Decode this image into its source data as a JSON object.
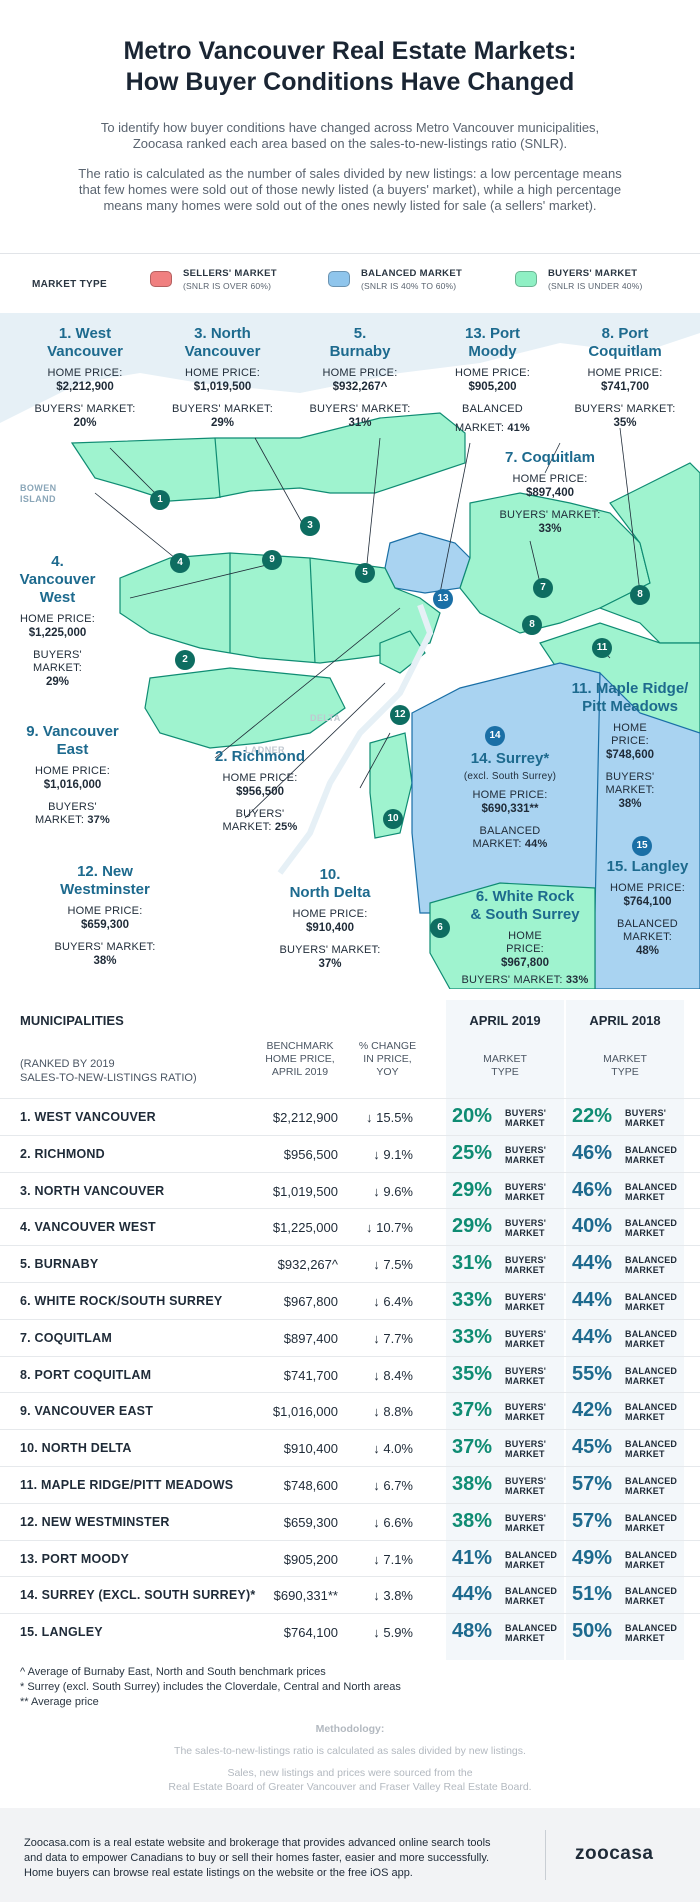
{
  "header": {
    "title_line1": "Metro Vancouver Real Estate Markets:",
    "title_line2": "How Buyer Conditions Have Changed",
    "intro1_line1": "To identify how buyer conditions have changed across Metro Vancouver municipalities,",
    "intro1_line2": "Zoocasa ranked each area based on the sales-to-new-listings ratio (SNLR).",
    "intro2_line1": "The ratio is calculated as the number of sales divided by new listings: a low percentage means",
    "intro2_line2": "that few homes were sold out of those newly listed (a buyers' market), while a high percentage",
    "intro2_line3": "means many homes were sold out of the ones newly listed for sale (a sellers' market)."
  },
  "legend": {
    "title": "MARKET TYPE",
    "sellers": {
      "name": "SELLERS' MARKET",
      "sub": "(SNLR IS OVER 60%)",
      "color": "#f08080"
    },
    "balanced": {
      "name": "BALANCED MARKET",
      "sub": "(SNLR IS 40% TO 60%)",
      "color": "#8fc5ec"
    },
    "buyers": {
      "name": "BUYERS' MARKET",
      "sub": "(SNLR IS UNDER 40%)",
      "color": "#8ff0c4"
    }
  },
  "map": {
    "place_bowen": "BOWEN",
    "place_island": "ISLAND",
    "place_delta": "DELTA",
    "place_ladner": "LADNER",
    "labels": {
      "westvan": {
        "name1": "1. West",
        "name2": "Vancouver",
        "price_key": "HOME PRICE:",
        "price": "$2,212,900",
        "market_key": "BUYERS' MARKET:",
        "market": "20%"
      },
      "northvan": {
        "name1": "3. North",
        "name2": "Vancouver",
        "price_key": "HOME PRICE:",
        "price": "$1,019,500",
        "market_key": "BUYERS' MARKET:",
        "market": "29%"
      },
      "burnaby": {
        "name1": "5.",
        "name2": "Burnaby",
        "price_key": "HOME PRICE:",
        "price": "$932,267^",
        "market_key": "BUYERS' MARKET:",
        "market": "31%"
      },
      "portmoody": {
        "name1": "13. Port",
        "name2": "Moody",
        "price_key": "HOME PRICE:",
        "price": "$905,200",
        "market_key1": "BALANCED",
        "market_key2": "MARKET:",
        "market": "41%"
      },
      "portcoq": {
        "name1": "8. Port",
        "name2": "Coquitlam",
        "price_key": "HOME PRICE:",
        "price": "$741,700",
        "market_key": "BUYERS' MARKET:",
        "market": "35%"
      },
      "coquitlam": {
        "name1": "7. Coquitlam",
        "price_key": "HOME PRICE:",
        "price": "$897,400",
        "market_key": "BUYERS' MARKET:",
        "market": "33%"
      },
      "vanwest": {
        "name1": "4.",
        "name2": "Vancouver",
        "name3": "West",
        "price_key": "HOME PRICE:",
        "price": "$1,225,000",
        "market_key1": "BUYERS'",
        "market_key2": "MARKET:",
        "market": "29%"
      },
      "mapleridge": {
        "name1": "11. Maple Ridge/",
        "name2": "Pitt Meadows",
        "price_key1": "HOME",
        "price_key2": "PRICE:",
        "price": "$748,600",
        "market_key1": "BUYERS'",
        "market_key2": "MARKET:",
        "market": "38%"
      },
      "vaneast": {
        "name1": "9. Vancouver",
        "name2": "East",
        "price_key": "HOME PRICE:",
        "price": "$1,016,000",
        "market_key1": "BUYERS'",
        "market_key2": "MARKET:",
        "market": "37%"
      },
      "richmond": {
        "name1": "2. Richmond",
        "price_key": "HOME PRICE:",
        "price": "$956,500",
        "market_key1": "BUYERS'",
        "market_key2": "MARKET:",
        "market": "25%"
      },
      "surrey": {
        "name1": "14. Surrey*",
        "sub": "(excl. South Surrey)",
        "price_key": "HOME PRICE:",
        "price": "$690,331**",
        "market_key1": "BALANCED",
        "market_key2": "MARKET:",
        "market": "44%"
      },
      "newwest": {
        "name1": "12. New",
        "name2": "Westminster",
        "price_key": "HOME PRICE:",
        "price": "$659,300",
        "market_key": "BUYERS' MARKET:",
        "market": "38%"
      },
      "northdelta": {
        "name1": "10.",
        "name2": "North Delta",
        "price_key": "HOME PRICE:",
        "price": "$910,400",
        "market_key": "BUYERS' MARKET:",
        "market": "37%"
      },
      "whiterock": {
        "name1": "6. White Rock",
        "name2": "& South Surrey",
        "price_key1": "HOME",
        "price_key2": "PRICE:",
        "price": "$967,800",
        "market_key1": "BUYERS'",
        "market_key2": "MARKET:",
        "market": "33%"
      },
      "langley": {
        "name1": "15. Langley",
        "price_key": "HOME PRICE:",
        "price": "$764,100",
        "market_key1": "BALANCED",
        "market_key2": "MARKET:",
        "market": "48%"
      }
    },
    "pins": [
      "1",
      "2",
      "3",
      "4",
      "5",
      "6",
      "7",
      "8",
      "9",
      "10",
      "11",
      "12",
      "13",
      "14",
      "15",
      "8"
    ]
  },
  "table": {
    "h_muni": "MUNICIPALITIES",
    "h_rank1": "(RANKED BY 2019",
    "h_rank2": "SALES-TO-NEW-LISTINGS RATIO)",
    "h_bench1": "BENCHMARK",
    "h_bench2": "HOME PRICE,",
    "h_bench3": "APRIL 2019",
    "h_chg1": "% CHANGE",
    "h_chg2": "IN PRICE,",
    "h_chg3": "YOY",
    "h_2019": "APRIL 2019",
    "h_2018": "APRIL 2018",
    "h_mt1": "MARKET",
    "h_mt2": "TYPE",
    "rows": [
      {
        "name": "1. WEST VANCOUVER",
        "price": "$2,212,900",
        "chg": "↓ 15.5%",
        "p19": "20%",
        "t19a": "BUYERS'",
        "t19b": "MARKET",
        "p18": "22%",
        "t18a": "BUYERS'",
        "t18b": "MARKET"
      },
      {
        "name": "2. RICHMOND",
        "price": "$956,500",
        "chg": "↓ 9.1%",
        "p19": "25%",
        "t19a": "BUYERS'",
        "t19b": "MARKET",
        "p18": "46%",
        "t18a": "BALANCED",
        "t18b": "MARKET"
      },
      {
        "name": "3. NORTH VANCOUVER",
        "price": "$1,019,500",
        "chg": "↓ 9.6%",
        "p19": "29%",
        "t19a": "BUYERS'",
        "t19b": "MARKET",
        "p18": "46%",
        "t18a": "BALANCED",
        "t18b": "MARKET"
      },
      {
        "name": "4. VANCOUVER WEST",
        "price": "$1,225,000",
        "chg": "↓ 10.7%",
        "p19": "29%",
        "t19a": "BUYERS'",
        "t19b": "MARKET",
        "p18": "40%",
        "t18a": "BALANCED",
        "t18b": "MARKET"
      },
      {
        "name": "5. BURNABY",
        "price": "$932,267^",
        "chg": "↓ 7.5%",
        "p19": "31%",
        "t19a": "BUYERS'",
        "t19b": "MARKET",
        "p18": "44%",
        "t18a": "BALANCED",
        "t18b": "MARKET"
      },
      {
        "name": "6. WHITE ROCK/SOUTH SURREY",
        "price": "$967,800",
        "chg": "↓ 6.4%",
        "p19": "33%",
        "t19a": "BUYERS'",
        "t19b": "MARKET",
        "p18": "44%",
        "t18a": "BALANCED",
        "t18b": "MARKET"
      },
      {
        "name": "7. COQUITLAM",
        "price": "$897,400",
        "chg": "↓ 7.7%",
        "p19": "33%",
        "t19a": "BUYERS'",
        "t19b": "MARKET",
        "p18": "44%",
        "t18a": "BALANCED",
        "t18b": "MARKET"
      },
      {
        "name": "8. PORT COQUITLAM",
        "price": "$741,700",
        "chg": "↓ 8.4%",
        "p19": "35%",
        "t19a": "BUYERS'",
        "t19b": "MARKET",
        "p18": "55%",
        "t18a": "BALANCED",
        "t18b": "MARKET"
      },
      {
        "name": "9. VANCOUVER EAST",
        "price": "$1,016,000",
        "chg": "↓ 8.8%",
        "p19": "37%",
        "t19a": "BUYERS'",
        "t19b": "MARKET",
        "p18": "42%",
        "t18a": "BALANCED",
        "t18b": "MARKET"
      },
      {
        "name": "10. NORTH DELTA",
        "price": "$910,400",
        "chg": "↓ 4.0%",
        "p19": "37%",
        "t19a": "BUYERS'",
        "t19b": "MARKET",
        "p18": "45%",
        "t18a": "BALANCED",
        "t18b": "MARKET"
      },
      {
        "name": "11. MAPLE RIDGE/PITT MEADOWS",
        "price": "$748,600",
        "chg": "↓ 6.7%",
        "p19": "38%",
        "t19a": "BUYERS'",
        "t19b": "MARKET",
        "p18": "57%",
        "t18a": "BALANCED",
        "t18b": "MARKET"
      },
      {
        "name": "12. NEW WESTMINSTER",
        "price": "$659,300",
        "chg": "↓ 6.6%",
        "p19": "38%",
        "t19a": "BUYERS'",
        "t19b": "MARKET",
        "p18": "57%",
        "t18a": "BALANCED",
        "t18b": "MARKET"
      },
      {
        "name": "13. PORT MOODY",
        "price": "$905,200",
        "chg": "↓ 7.1%",
        "p19": "41%",
        "t19a": "BALANCED",
        "t19b": "MARKET",
        "p18": "49%",
        "t18a": "BALANCED",
        "t18b": "MARKET"
      },
      {
        "name": "14. SURREY (EXCL. SOUTH SURREY)*",
        "price": "$690,331**",
        "chg": "↓ 3.8%",
        "p19": "44%",
        "t19a": "BALANCED",
        "t19b": "MARKET",
        "p18": "51%",
        "t18a": "BALANCED",
        "t18b": "MARKET"
      },
      {
        "name": "15. LANGLEY",
        "price": "$764,100",
        "chg": "↓ 5.9%",
        "p19": "48%",
        "t19a": "BALANCED",
        "t19b": "MARKET",
        "p18": "50%",
        "t18a": "BALANCED",
        "t18b": "MARKET"
      }
    ]
  },
  "notes": {
    "n1": "^ Average of Burnaby East, North and South benchmark prices",
    "n2": "* Surrey (excl. South Surrey) includes the Cloverdale, Central and North areas",
    "n3": "** Average price"
  },
  "methodology": {
    "title": "Methodology:",
    "line1": "The sales-to-new-listings ratio is calculated as sales divided by new listings.",
    "line2": "Sales, new listings and prices were sourced from the",
    "line3": "Real Estate Board of Greater Vancouver and Fraser Valley Real Estate Board."
  },
  "footer": {
    "line1": "Zoocasa.com is a real estate website and brokerage that provides advanced online search tools",
    "line2": "and data to empower Canadians to buy or sell their homes faster, easier and more successfully.",
    "line3": "Home buyers can browse real estate listings on the website or the free iOS app.",
    "logo": "zoocasa"
  },
  "colors": {
    "buyers_fill": "#9ff3cf",
    "balanced_fill": "#a9d3f1",
    "water": "#e6f0f6",
    "green_text": "#0f8c73",
    "blue_text": "#1d6a8e"
  }
}
